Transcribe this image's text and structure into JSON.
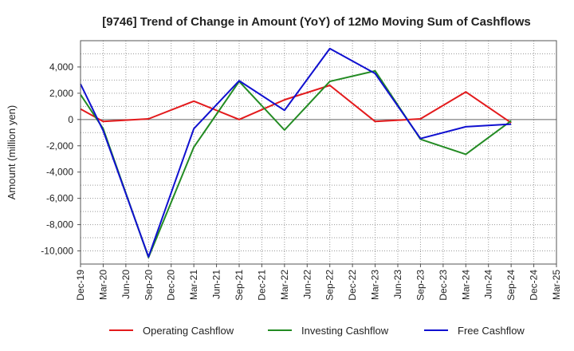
{
  "chart_data": {
    "type": "line",
    "title": "[9746]  Trend of Change in Amount (YoY) of 12Mo Moving Sum of Cashflows",
    "xlabel": "",
    "ylabel": "Amount (million yen)",
    "ylim": [
      -11000,
      6000
    ],
    "yticks": [
      4000,
      2000,
      0,
      -2000,
      -4000,
      -6000,
      -8000,
      -10000
    ],
    "ytick_labels": [
      "4,000",
      "2,000",
      "0",
      "-2,000",
      "-4,000",
      "-6,000",
      "-8,000",
      "-10,000"
    ],
    "categories": [
      "Dec-19",
      "Mar-20",
      "Jun-20",
      "Sep-20",
      "Dec-20",
      "Mar-21",
      "Jun-21",
      "Sep-21",
      "Dec-21",
      "Mar-22",
      "Jun-22",
      "Sep-22",
      "Dec-22",
      "Mar-23",
      "Jun-23",
      "Sep-23",
      "Dec-23",
      "Mar-24",
      "Jun-24",
      "Sep-24",
      "Dec-24",
      "Mar-25"
    ],
    "grid": true,
    "legend_position": "bottom",
    "series": [
      {
        "name": "Operating Cashflow",
        "color": "#e31a1c",
        "points": [
          [
            "Dec-19",
            800
          ],
          [
            "Mar-20",
            -150
          ],
          [
            "Sep-20",
            50
          ],
          [
            "Mar-21",
            1400
          ],
          [
            "Sep-21",
            0
          ],
          [
            "Mar-22",
            1500
          ],
          [
            "Sep-22",
            2600
          ],
          [
            "Mar-23",
            -150
          ],
          [
            "Sep-23",
            50
          ],
          [
            "Mar-24",
            2100
          ],
          [
            "Sep-24",
            -250
          ]
        ]
      },
      {
        "name": "Investing Cashflow",
        "color": "#238b23",
        "points": [
          [
            "Dec-19",
            1900
          ],
          [
            "Mar-20",
            -700
          ],
          [
            "Sep-20",
            -10500
          ],
          [
            "Mar-21",
            -2100
          ],
          [
            "Sep-21",
            2900
          ],
          [
            "Mar-22",
            -800
          ],
          [
            "Sep-22",
            2900
          ],
          [
            "Mar-23",
            3700
          ],
          [
            "Sep-23",
            -1500
          ],
          [
            "Mar-24",
            -2650
          ],
          [
            "Sep-24",
            -100
          ]
        ]
      },
      {
        "name": "Free Cashflow",
        "color": "#1010d0",
        "points": [
          [
            "Dec-19",
            2700
          ],
          [
            "Mar-20",
            -850
          ],
          [
            "Sep-20",
            -10450
          ],
          [
            "Mar-21",
            -700
          ],
          [
            "Sep-21",
            2950
          ],
          [
            "Mar-22",
            700
          ],
          [
            "Sep-22",
            5400
          ],
          [
            "Mar-23",
            3500
          ],
          [
            "Sep-23",
            -1450
          ],
          [
            "Mar-24",
            -550
          ],
          [
            "Sep-24",
            -350
          ]
        ]
      }
    ]
  }
}
